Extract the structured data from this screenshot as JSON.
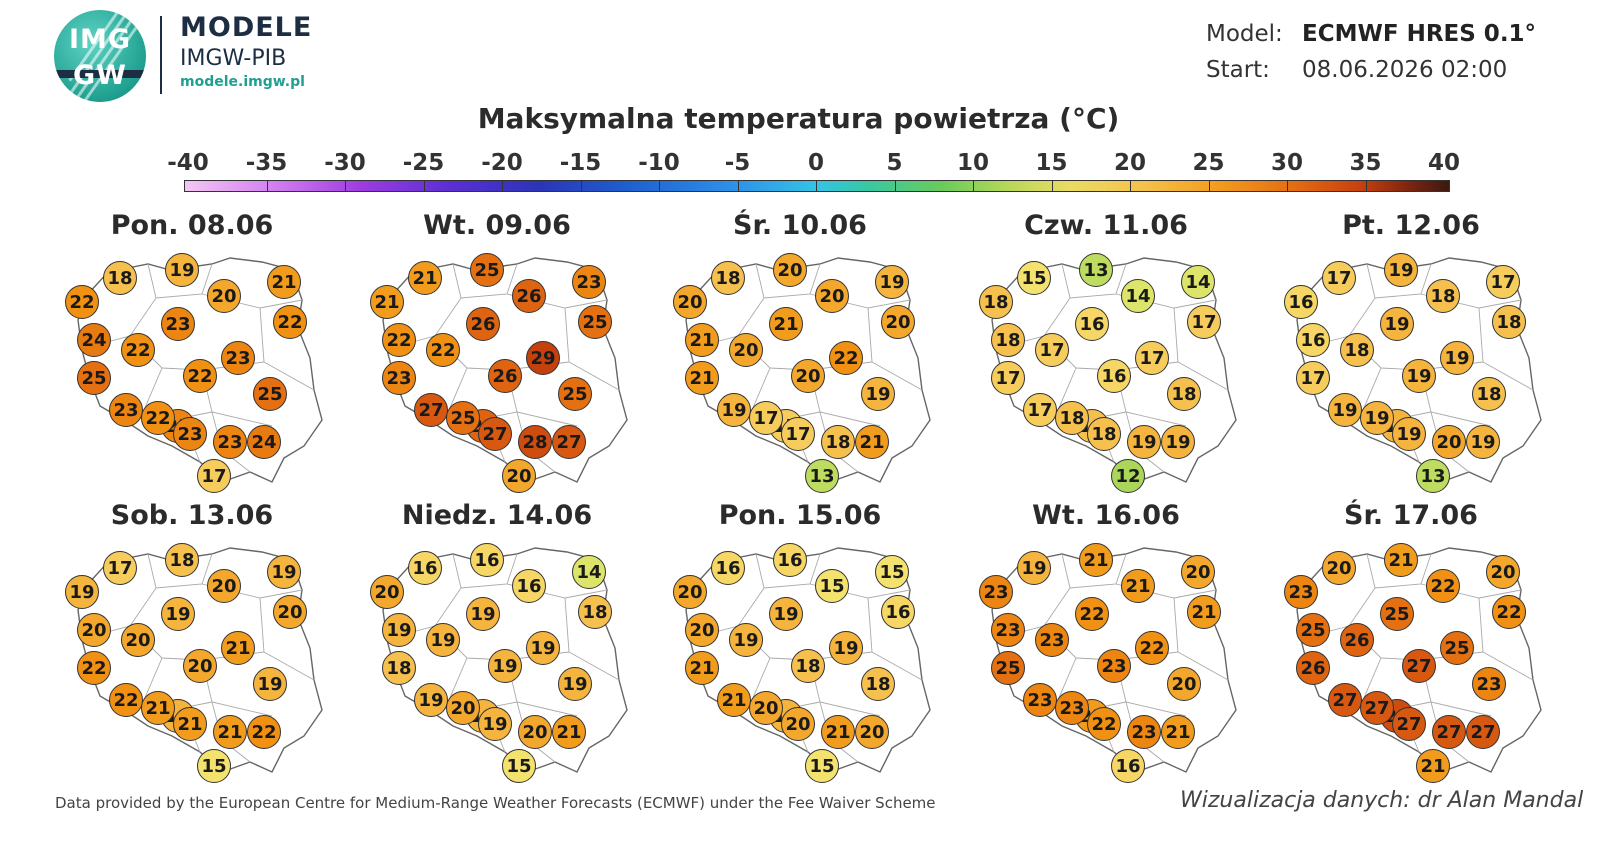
{
  "logo": {
    "mark_text_top": "IMG",
    "mark_text_bottom": "GW",
    "line1": "MODELE",
    "line2": "IMGW-PIB",
    "line3": "modele.imgw.pl",
    "color": "#1fa090"
  },
  "model_info": {
    "model_label": "Model:",
    "model_value": "ECMWF HRES 0.1°",
    "start_label": "Start:",
    "start_value": "08.06.2026 02:00"
  },
  "title": "Maksymalna temperatura powietrza (°C)",
  "scale": {
    "ticks": [
      "-40",
      "-35",
      "-30",
      "-25",
      "-20",
      "-15",
      "-10",
      "-5",
      "0",
      "5",
      "10",
      "15",
      "20",
      "25",
      "30",
      "35",
      "40"
    ]
  },
  "panels": [
    {
      "label": "Pon. 08.06",
      "values": [
        18,
        19,
        21,
        22,
        20,
        22,
        24,
        23,
        22,
        23,
        25,
        22,
        23,
        25,
        23,
        22,
        23,
        23,
        24,
        17
      ]
    },
    {
      "label": "Wt. 09.06",
      "values": [
        21,
        25,
        23,
        21,
        26,
        25,
        22,
        26,
        22,
        29,
        23,
        26,
        26,
        25,
        27,
        25,
        27,
        28,
        27,
        20
      ]
    },
    {
      "label": "Śr. 10.06",
      "values": [
        18,
        20,
        19,
        20,
        20,
        20,
        21,
        21,
        20,
        22,
        21,
        20,
        17,
        19,
        19,
        17,
        17,
        18,
        21,
        13
      ]
    },
    {
      "label": "Czw. 11.06",
      "values": [
        15,
        13,
        14,
        18,
        14,
        17,
        18,
        16,
        17,
        17,
        17,
        16,
        18,
        18,
        17,
        18,
        18,
        19,
        19,
        12
      ]
    },
    {
      "label": "Pt. 12.06",
      "values": [
        17,
        19,
        17,
        16,
        18,
        18,
        16,
        19,
        18,
        19,
        17,
        19,
        19,
        18,
        19,
        19,
        19,
        20,
        19,
        13
      ]
    },
    {
      "label": "Sob. 13.06",
      "values": [
        17,
        18,
        19,
        19,
        20,
        20,
        20,
        19,
        20,
        21,
        22,
        20,
        19,
        19,
        22,
        21,
        21,
        21,
        22,
        15
      ]
    },
    {
      "label": "Niedz. 14.06",
      "values": [
        16,
        16,
        14,
        20,
        16,
        18,
        19,
        19,
        19,
        19,
        18,
        19,
        19,
        19,
        19,
        20,
        19,
        20,
        21,
        15
      ]
    },
    {
      "label": "Pon. 15.06",
      "values": [
        16,
        16,
        15,
        20,
        15,
        16,
        20,
        19,
        19,
        19,
        21,
        18,
        19,
        18,
        21,
        20,
        20,
        21,
        20,
        15
      ]
    },
    {
      "label": "Wt. 16.06",
      "values": [
        19,
        21,
        20,
        23,
        21,
        21,
        23,
        22,
        23,
        22,
        25,
        23,
        21,
        20,
        23,
        23,
        22,
        23,
        21,
        16
      ]
    },
    {
      "label": "Śr. 17.06",
      "values": [
        20,
        21,
        20,
        23,
        22,
        22,
        25,
        25,
        26,
        25,
        26,
        27,
        28,
        23,
        27,
        27,
        27,
        27,
        27,
        21
      ]
    }
  ],
  "footer": {
    "left": "Data provided by the European Centre for Medium-Range Weather Forecasts (ECMWF) under the Fee Waiver Scheme",
    "right": "Wizualizacja danych: dr Alan Mandal"
  }
}
